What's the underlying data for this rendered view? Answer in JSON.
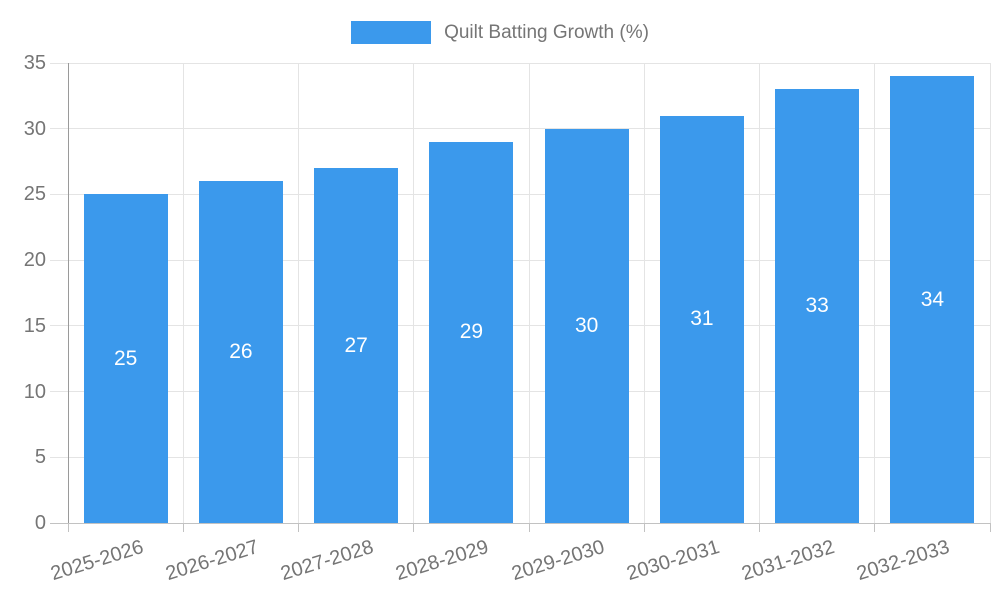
{
  "legend": {
    "label": "Quilt Batting Growth (%)",
    "swatch_color": "#3b99ec"
  },
  "chart_data": {
    "type": "bar",
    "title": "Quilt Batting Growth (%)",
    "categories": [
      "2025-2026",
      "2026-2027",
      "2027-2028",
      "2028-2029",
      "2029-2030",
      "2030-2031",
      "2031-2032",
      "2032-2033"
    ],
    "values": [
      25,
      26,
      27,
      29,
      30,
      31,
      33,
      34
    ],
    "value_labels": [
      "25",
      "26",
      "27",
      "29",
      "30",
      "31",
      "33",
      "34"
    ],
    "xlabel": "",
    "ylabel": "",
    "ylim": [
      0,
      35
    ],
    "yticks": [
      0,
      5,
      10,
      15,
      20,
      25,
      30,
      35
    ],
    "grid": true,
    "legend_position": "top",
    "bar_color": "#3b99ec",
    "value_label_color": "#ffffff",
    "axis_text_color": "#757575",
    "gridline_color": "#e4e4e4",
    "axis_line_color": "#9a9a9a"
  }
}
